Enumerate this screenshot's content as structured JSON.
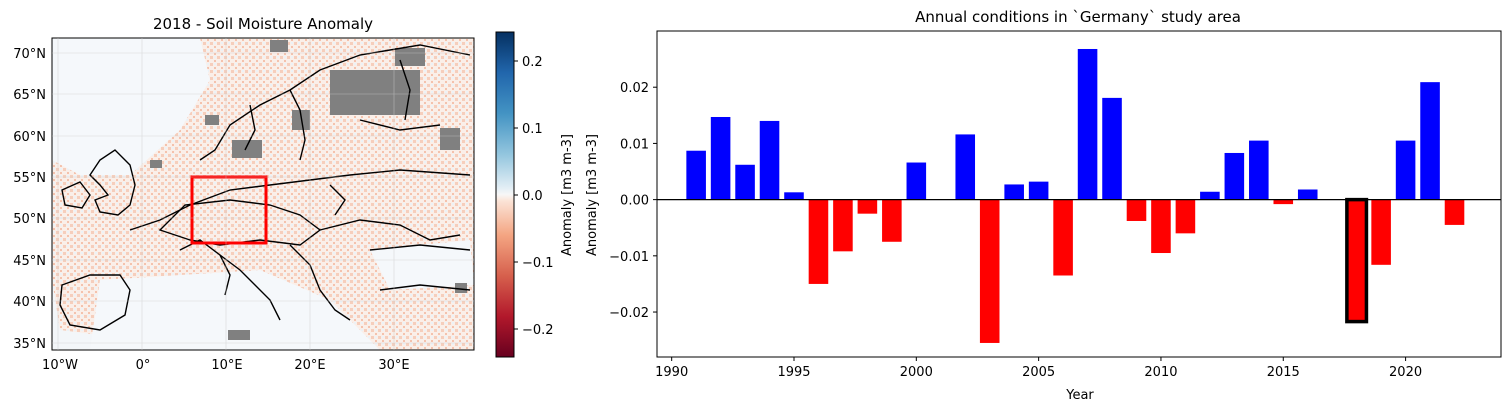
{
  "map": {
    "title": "2018 - Soil Moisture Anomaly",
    "lat_labels": [
      "70°N",
      "65°N",
      "60°N",
      "55°N",
      "50°N",
      "45°N",
      "40°N",
      "35°N"
    ],
    "lon_labels": [
      "10°W",
      "0°",
      "10°E",
      "20°E",
      "30°E"
    ],
    "study_area_color": "#ff0000",
    "colorbar": {
      "label": "Anomaly [m3 m-3]",
      "ticks": [
        "0.2",
        "0.1",
        "0.0",
        "−0.1",
        "−0.2"
      ],
      "colormap": "RdBu",
      "range": [
        -0.25,
        0.25
      ]
    }
  },
  "chart_data": {
    "type": "bar",
    "title": "Annual conditions in `Germany` study area",
    "xlabel": "Year",
    "ylabel": "Anomaly [m3 m-3]",
    "xlim": [
      1989.4,
      2023.9
    ],
    "ylim": [
      -0.028,
      0.03
    ],
    "x_ticks": [
      "1990",
      "1995",
      "2000",
      "2005",
      "2010",
      "2015",
      "2020"
    ],
    "y_ticks": [
      "0.02",
      "0.01",
      "0.00",
      "−0.01",
      "−0.02"
    ],
    "positive_color": "#0000ff",
    "negative_color": "#ff0000",
    "highlight_year": 2018,
    "years": [
      1991,
      1992,
      1993,
      1994,
      1995,
      1996,
      1997,
      1998,
      1999,
      2000,
      2001,
      2002,
      2003,
      2004,
      2005,
      2006,
      2007,
      2008,
      2009,
      2010,
      2011,
      2012,
      2013,
      2014,
      2015,
      2016,
      2017,
      2018,
      2019,
      2020,
      2021,
      2022
    ],
    "values": [
      0.0087,
      0.0147,
      0.0062,
      0.014,
      0.0013,
      -0.015,
      -0.0092,
      -0.0025,
      -0.0075,
      0.0066,
      0.0,
      0.0116,
      -0.0255,
      0.0027,
      0.0032,
      -0.0135,
      0.0268,
      0.0181,
      -0.0038,
      -0.0095,
      -0.006,
      0.0014,
      0.0083,
      0.0105,
      -0.0008,
      0.0018,
      0.0,
      -0.0217,
      -0.0116,
      0.0105,
      0.0209,
      -0.0045
    ]
  }
}
